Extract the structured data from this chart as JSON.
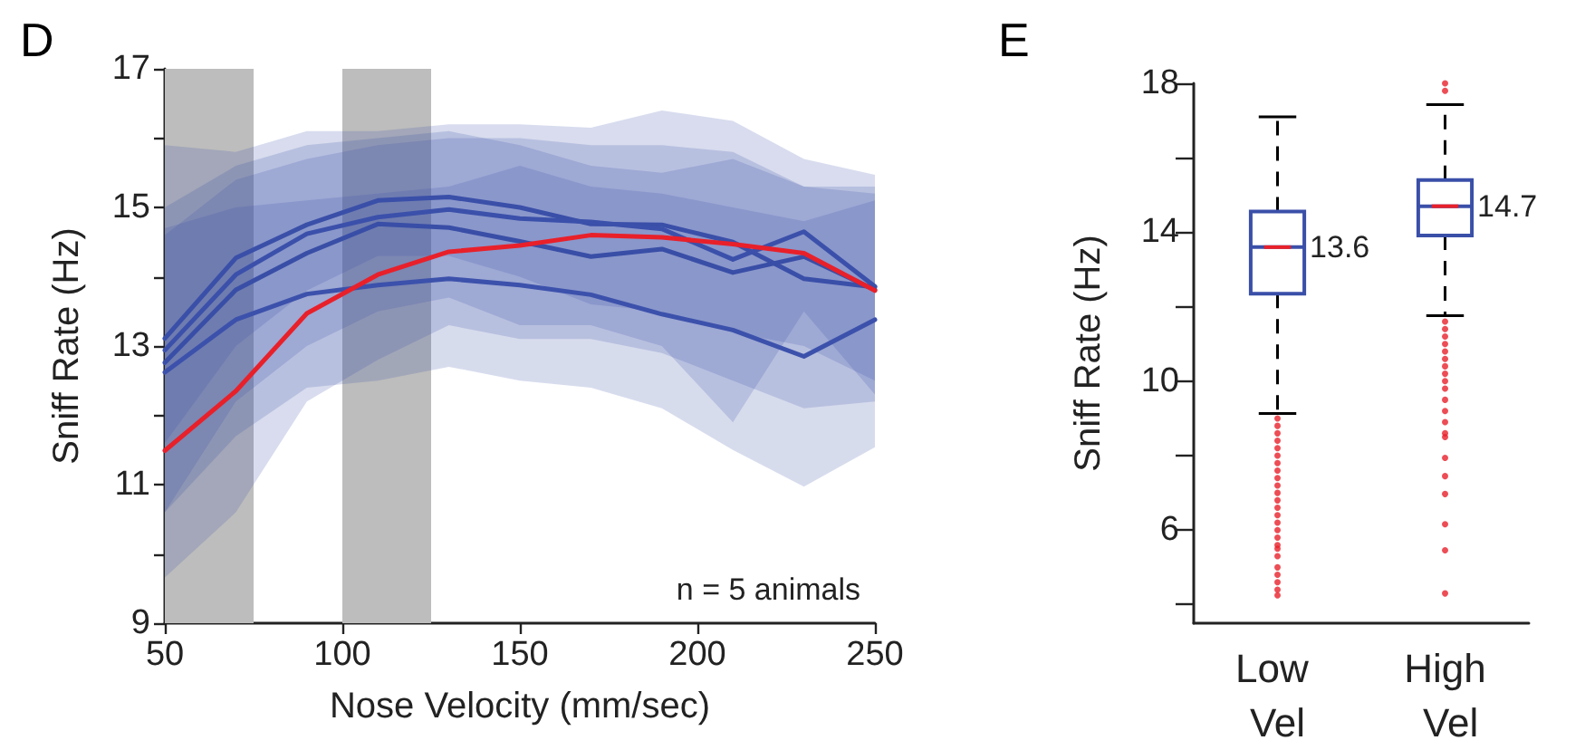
{
  "chart_data": [
    {
      "type": "line",
      "title": "D",
      "xlabel": "Nose Velocity (mm/sec)",
      "ylabel": "Sniff Rate (Hz)",
      "annotations": [
        "n = 5 animals"
      ],
      "x": [
        50,
        70,
        90,
        110,
        130,
        150,
        170,
        190,
        210,
        230,
        250
      ],
      "series": [
        {
          "color": "#3a4fa8",
          "values": [
            13.11,
            14.27,
            14.75,
            15.1,
            15.15,
            15.0,
            14.76,
            14.75,
            14.5,
            13.97,
            13.85
          ],
          "upper": [
            14.6,
            15.4,
            15.7,
            15.9,
            16.0,
            16.0,
            15.9,
            15.9,
            15.8,
            15.3,
            15.2
          ],
          "lower": [
            11.6,
            13.0,
            13.8,
            14.3,
            14.3,
            14.0,
            13.6,
            13.5,
            13.2,
            13.0,
            12.5
          ]
        },
        {
          "color": "#3b50aa",
          "values": [
            12.94,
            14.03,
            14.62,
            14.86,
            14.97,
            14.84,
            14.79,
            14.69,
            14.25,
            14.65,
            13.86
          ],
          "upper": [
            15.9,
            15.8,
            16.1,
            16.1,
            16.2,
            16.2,
            16.15,
            16.4,
            16.25,
            15.7,
            15.47
          ],
          "lower": [
            10.6,
            12.2,
            13.0,
            13.5,
            13.7,
            13.3,
            13.3,
            13.0,
            11.9,
            13.5,
            12.3
          ]
        },
        {
          "color": "#394ea6",
          "values": [
            12.76,
            13.81,
            14.34,
            14.76,
            14.71,
            14.51,
            14.29,
            14.4,
            14.06,
            14.29,
            13.81
          ],
          "upper": [
            15.0,
            15.6,
            15.9,
            16.0,
            16.1,
            15.9,
            15.6,
            15.5,
            15.7,
            15.3,
            15.3
          ],
          "lower": [
            10.6,
            11.7,
            12.4,
            12.5,
            12.7,
            12.5,
            12.4,
            12.1,
            11.5,
            10.97,
            11.54
          ]
        },
        {
          "color": "#3c51ab",
          "values": [
            12.62,
            13.38,
            13.75,
            13.88,
            13.97,
            13.88,
            13.74,
            13.46,
            13.23,
            12.85,
            13.38
          ],
          "upper": [
            14.7,
            15.0,
            15.1,
            15.2,
            15.3,
            15.6,
            15.3,
            15.2,
            15.0,
            14.8,
            15.1
          ],
          "lower": [
            9.66,
            10.6,
            12.2,
            12.8,
            13.3,
            13.1,
            13.1,
            12.9,
            12.5,
            12.1,
            12.2
          ]
        },
        {
          "color": "#e8202a",
          "values": [
            11.49,
            12.35,
            13.47,
            14.03,
            14.36,
            14.45,
            14.6,
            14.57,
            14.47,
            14.34,
            13.8
          ]
        }
      ],
      "xlim": [
        50,
        250
      ],
      "xticks": [
        50,
        100,
        150,
        200,
        250
      ],
      "ylim": [
        9,
        17
      ],
      "yticks": [
        9,
        {
          "value": 10,
          "label": null
        },
        11,
        {
          "value": 12,
          "label": null
        },
        13,
        {
          "value": 14,
          "label": null
        },
        15,
        {
          "value": 16,
          "label": null
        },
        17
      ],
      "bands": [
        {
          "axis": "x",
          "from": 50,
          "to": 75,
          "color": "#bdbdbd"
        },
        {
          "axis": "x",
          "from": 100,
          "to": 125,
          "color": "#bdbdbd"
        }
      ],
      "grid": false,
      "marker": "none",
      "line_style": "solid"
    },
    {
      "type": "box",
      "title": "E",
      "ylabel": "Sniff Rate (Hz)",
      "categories": [
        "Low Vel",
        "High Vel"
      ],
      "annotations": [
        {
          "text": "13.6",
          "x": "Low Vel",
          "y": 13.6
        },
        {
          "text": "14.7",
          "x": "High Vel",
          "y": 14.7
        }
      ],
      "series": [
        {
          "color": "#3a4fa8",
          "boxes": [
            {
              "low": 9.13,
              "q1": 12.35,
              "median": 13.6,
              "q3": 14.56,
              "high": 17.1,
              "outliers": [
                9.0,
                8.8,
                8.6,
                8.4,
                8.2,
                8.0,
                7.8,
                7.6,
                7.4,
                7.2,
                7.0,
                6.8,
                6.6,
                6.4,
                6.2,
                6.0,
                5.8,
                5.6,
                5.5,
                5.3,
                5.0,
                4.8,
                4.6,
                4.4,
                4.25
              ]
            },
            {
              "low": 11.76,
              "q1": 13.91,
              "median": 14.7,
              "q3": 15.4,
              "high": 17.43,
              "outliers": [
                18.0,
                17.8,
                11.6,
                11.4,
                11.2,
                11.0,
                10.8,
                10.6,
                10.4,
                10.2,
                10.0,
                9.8,
                9.5,
                9.2,
                8.9,
                8.6,
                8.5,
                7.94,
                7.45,
                6.97,
                6.16,
                5.46,
                4.3
              ]
            }
          ]
        }
      ],
      "ylim": [
        3.5,
        18
      ],
      "yticks": [
        {
          "value": 4,
          "label": null
        },
        6,
        {
          "value": 8,
          "label": null
        },
        10,
        {
          "value": 12,
          "label": null
        },
        14,
        {
          "value": 16,
          "label": null
        },
        18
      ],
      "grid": false
    }
  ]
}
